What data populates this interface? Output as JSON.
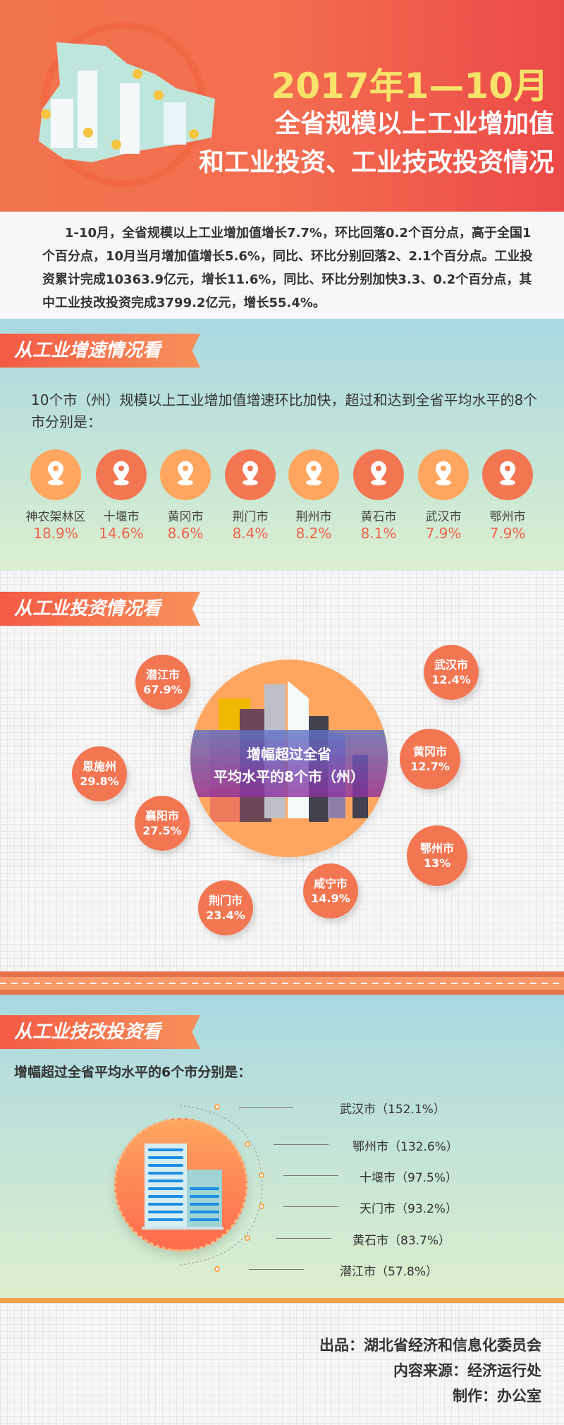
{
  "header": {
    "title_line1": "2017年1—10月",
    "title_line2": "全省规模以上工业增加值",
    "title_line3": "和工业投资、工业技改投资情况"
  },
  "intro": "1-10月，全省规模以上工业增加值增长7.7%，环比回落0.2个百分点，高于全国1个百分点，10月当月增加值增长5.6%，同比、环比分别回落2、2.1个百分点。工业投资累计完成10363.9亿元，增长11.6%，同比、环比分别加快3.3、0.2个百分点，其中工业技改投资完成3799.2亿元，增长55.4%。",
  "section1": {
    "banner": "从工业增速情况看",
    "desc": "10个市（州）规模以上工业增加值增速环比加快，超过和达到全省平均水平的8个市分别是：",
    "icon": "location-pin-icon",
    "colors": [
      "#fea65f",
      "#f37653"
    ],
    "cities": [
      {
        "name": "神农架林区",
        "value": "18.9%"
      },
      {
        "name": "十堰市",
        "value": "14.6%"
      },
      {
        "name": "黄冈市",
        "value": "8.6%"
      },
      {
        "name": "荆门市",
        "value": "8.4%"
      },
      {
        "name": "荆州市",
        "value": "8.2%"
      },
      {
        "name": "黄石市",
        "value": "8.1%"
      },
      {
        "name": "武汉市",
        "value": "7.9%"
      },
      {
        "name": "鄂州市",
        "value": "7.9%"
      }
    ]
  },
  "section2": {
    "banner": "从工业投资情况看",
    "center_line1": "增幅超过全省",
    "center_line2": "平均水平的8个市（州）",
    "cities": [
      {
        "name": "潜江市",
        "value": "67.9%"
      },
      {
        "name": "武汉市",
        "value": "12.4%"
      },
      {
        "name": "恩施州",
        "value": "29.8%"
      },
      {
        "name": "黄冈市",
        "value": "12.7%"
      },
      {
        "name": "襄阳市",
        "value": "27.5%"
      },
      {
        "name": "鄂州市",
        "value": "13%"
      },
      {
        "name": "咸宁市",
        "value": "14.9%"
      },
      {
        "name": "荆门市",
        "value": "23.4%"
      }
    ]
  },
  "section3": {
    "banner": "从工业技改投资看",
    "subtitle": "增幅超过全省平均水平的6个市分别是：",
    "cities": [
      {
        "label": "武汉市（152.1%）"
      },
      {
        "label": "鄂州市（132.6%）"
      },
      {
        "label": "十堰市（97.5%）"
      },
      {
        "label": "天门市（93.2%）"
      },
      {
        "label": "黄石市（83.7%）"
      },
      {
        "label": "潜江市（57.8%）"
      }
    ]
  },
  "footer": {
    "producer": "出品：湖北省经济和信息化委员会",
    "source": "内容来源：经济运行处",
    "made_by": "制作：办公室"
  }
}
